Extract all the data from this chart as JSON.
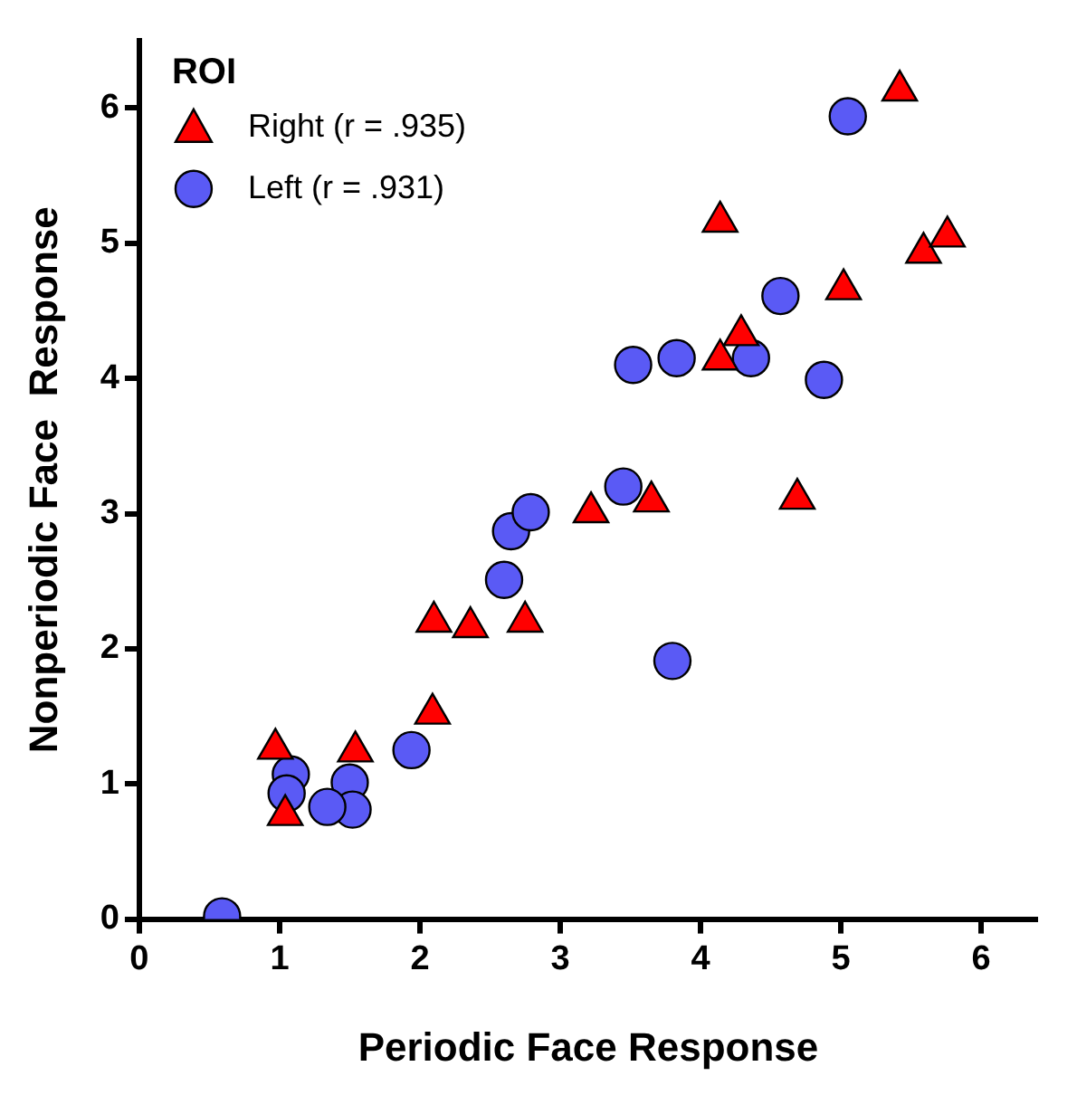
{
  "chart_data": {
    "type": "scatter",
    "xlabel": "Periodic Face Response",
    "ylabel": "Nonperiodic Face  Response",
    "legend_title": "ROI",
    "legend": "top left",
    "grid": false,
    "xlim": [
      0,
      6.4
    ],
    "ylim": [
      0,
      6.5
    ],
    "xticks": [
      0,
      1,
      2,
      3,
      4,
      5,
      6
    ],
    "yticks": [
      0,
      1,
      2,
      3,
      4,
      5,
      6
    ],
    "series": [
      {
        "name": "Right (r = .935)",
        "color": "#ff0000",
        "marker": "triangle",
        "x": [
          0.97,
          1.04,
          1.54,
          2.09,
          2.1,
          2.36,
          2.75,
          3.22,
          3.65,
          4.14,
          4.29,
          4.14,
          5.02,
          5.59,
          5.76,
          5.42,
          4.69
        ],
        "values": [
          1.26,
          0.77,
          1.24,
          1.52,
          2.2,
          2.16,
          2.2,
          3.01,
          3.09,
          4.14,
          4.32,
          5.16,
          4.66,
          4.93,
          5.05,
          6.13,
          3.11
        ]
      },
      {
        "name": "Left (r = .931)",
        "color": "#5a5af5",
        "marker": "circle",
        "x": [
          0.59,
          1.08,
          1.05,
          1.5,
          1.52,
          1.34,
          1.94,
          2.6,
          2.65,
          2.79,
          3.8,
          3.52,
          3.83,
          4.36,
          4.57,
          4.88,
          5.05,
          3.45
        ],
        "values": [
          0.02,
          1.07,
          0.93,
          1.01,
          0.81,
          0.83,
          1.25,
          2.51,
          2.87,
          3.01,
          1.91,
          4.1,
          4.15,
          4.15,
          4.61,
          3.99,
          5.94,
          3.2
        ]
      }
    ]
  }
}
